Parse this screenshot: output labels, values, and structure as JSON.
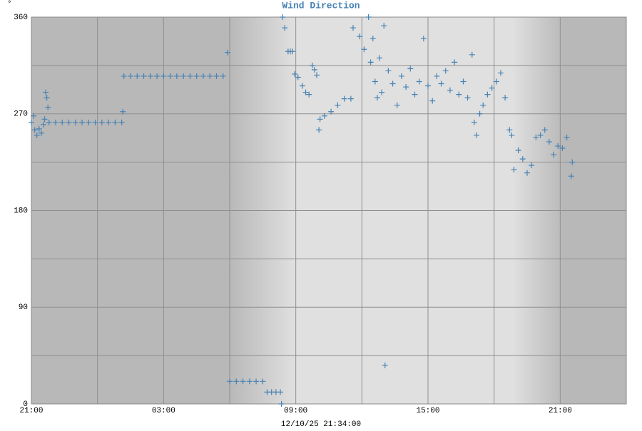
{
  "chart_data": {
    "type": "scatter",
    "title": "Wind Direction",
    "y_unit": "°",
    "footer": "12/10/25 21:34:00",
    "color": "#4682b4",
    "grid": true,
    "xlim": [
      0,
      27
    ],
    "ylim": [
      0,
      360
    ],
    "xticks": [
      {
        "value": 0,
        "label": "21:00"
      },
      {
        "value": 6,
        "label": "03:00"
      },
      {
        "value": 12,
        "label": "09:00"
      },
      {
        "value": 18,
        "label": "15:00"
      },
      {
        "value": 24,
        "label": "21:00"
      }
    ],
    "minor_xticks": [
      3,
      9,
      15,
      21
    ],
    "yticks": [
      0,
      90,
      180,
      270,
      360
    ],
    "minor_yticks": [
      45,
      135,
      225,
      315
    ],
    "series": [
      {
        "name": "Wind Direction",
        "x": [
          0,
          0.1,
          0.15,
          0.25,
          0.35,
          0.45,
          0.55,
          0.6,
          0.65,
          0.7,
          0.75,
          0.8,
          1.1,
          1.4,
          1.7,
          2,
          2.3,
          2.6,
          2.9,
          3.2,
          3.5,
          3.8,
          4.1,
          4.15,
          4.2,
          4.5,
          4.8,
          5.1,
          5.4,
          5.7,
          6,
          6.3,
          6.6,
          6.9,
          7.2,
          7.5,
          7.8,
          8.1,
          8.4,
          8.7,
          8.9,
          9.0,
          9.3,
          9.6,
          9.9,
          10.2,
          10.5,
          10.7,
          10.9,
          11.1,
          11.3,
          11.35,
          11.4,
          11.5,
          11.65,
          11.75,
          11.85,
          11.95,
          12.1,
          12.3,
          12.45,
          12.6,
          12.75,
          12.85,
          12.95,
          13.05,
          13.1,
          13.3,
          13.6,
          13.9,
          14.2,
          14.5,
          14.6,
          14.9,
          15.1,
          15.3,
          15.4,
          15.5,
          15.6,
          15.7,
          15.8,
          15.9,
          16.0,
          16.05,
          16.2,
          16.4,
          16.6,
          16.8,
          17,
          17.2,
          17.4,
          17.6,
          17.8,
          18,
          18.2,
          18.4,
          18.6,
          18.8,
          19,
          19.2,
          19.4,
          19.6,
          19.8,
          20.0,
          20.1,
          20.2,
          20.35,
          20.5,
          20.7,
          20.9,
          21.1,
          21.3,
          21.5,
          21.7,
          21.8,
          21.9,
          22.1,
          22.3,
          22.5,
          22.7,
          22.9,
          23.1,
          23.3,
          23.5,
          23.7,
          23.9,
          24.1,
          24.3,
          24.5,
          24.55
        ],
        "values": [
          262,
          268,
          255,
          250,
          256,
          252,
          260,
          265,
          290,
          285,
          276,
          262,
          262,
          262,
          262,
          262,
          262,
          262,
          262,
          262,
          262,
          262,
          262,
          272,
          305,
          305,
          305,
          305,
          305,
          305,
          305,
          305,
          305,
          305,
          305,
          305,
          305,
          305,
          305,
          305,
          327,
          21,
          21,
          21,
          21,
          21,
          21,
          11,
          11,
          11,
          11,
          0,
          360,
          350,
          328,
          328,
          328,
          307,
          304,
          296,
          290,
          288,
          315,
          311,
          306,
          255,
          265,
          268,
          272,
          278,
          284,
          284,
          350,
          342,
          330,
          360,
          318,
          340,
          300,
          285,
          322,
          290,
          352,
          36,
          310,
          298,
          278,
          305,
          295,
          312,
          288,
          300,
          340,
          296,
          282,
          305,
          298,
          310,
          292,
          318,
          288,
          300,
          285,
          325,
          262,
          250,
          270,
          278,
          288,
          294,
          300,
          308,
          285,
          255,
          250,
          218,
          236,
          228,
          215,
          222,
          248,
          250,
          255,
          244,
          232,
          240,
          238,
          248,
          212,
          225
        ]
      }
    ]
  }
}
